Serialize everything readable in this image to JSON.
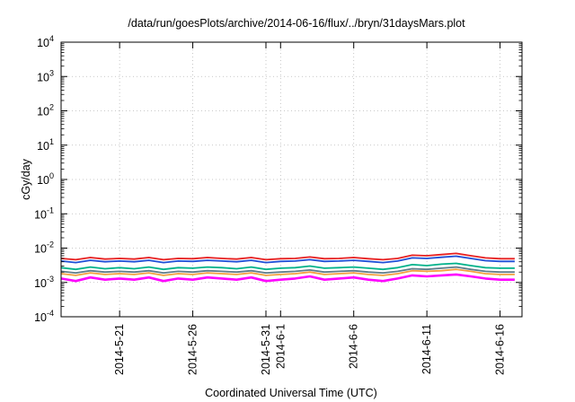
{
  "chart_data": {
    "type": "line",
    "title": "/data/run/goesPlots/archive/2014-06-16/flux/../bryn/31daysMars.plot",
    "xlabel": "Coordinated Universal Time (UTC)",
    "ylabel": "cGy/day",
    "yscale": "log",
    "ylim": [
      0.0001,
      10000
    ],
    "xlim": [
      "2014-05-17",
      "2014-06-17 12:00"
    ],
    "grid": true,
    "y_ticks": [
      {
        "value": 0.0001,
        "base": "10",
        "exp": "-4"
      },
      {
        "value": 0.001,
        "base": "10",
        "exp": "-3"
      },
      {
        "value": 0.01,
        "base": "10",
        "exp": "-2"
      },
      {
        "value": 0.1,
        "base": "10",
        "exp": "-1"
      },
      {
        "value": 1,
        "base": "10",
        "exp": "0"
      },
      {
        "value": 10,
        "base": "10",
        "exp": "1"
      },
      {
        "value": 100,
        "base": "10",
        "exp": "2"
      },
      {
        "value": 1000,
        "base": "10",
        "exp": "3"
      },
      {
        "value": 10000,
        "base": "10",
        "exp": "4"
      }
    ],
    "x_ticks": [
      {
        "date": "2014-05-21",
        "label": "2014-5-21"
      },
      {
        "date": "2014-05-26",
        "label": "2014-5-26"
      },
      {
        "date": "2014-05-31",
        "label": "2014-5-31"
      },
      {
        "date": "2014-06-01",
        "label": "2014-6-1"
      },
      {
        "date": "2014-06-06",
        "label": "2014-6-6"
      },
      {
        "date": "2014-06-11",
        "label": "2014-6-11"
      },
      {
        "date": "2014-06-16",
        "label": "2014-6-16"
      }
    ],
    "x": [
      "2014-05-17",
      "2014-05-18",
      "2014-05-19",
      "2014-05-20",
      "2014-05-21",
      "2014-05-22",
      "2014-05-23",
      "2014-05-24",
      "2014-05-25",
      "2014-05-26",
      "2014-05-27",
      "2014-05-28",
      "2014-05-29",
      "2014-05-30",
      "2014-05-31",
      "2014-06-01",
      "2014-06-02",
      "2014-06-03",
      "2014-06-04",
      "2014-06-05",
      "2014-06-06",
      "2014-06-07",
      "2014-06-08",
      "2014-06-09",
      "2014-06-10",
      "2014-06-11",
      "2014-06-12",
      "2014-06-13",
      "2014-06-14",
      "2014-06-15",
      "2014-06-16",
      "2014-06-17"
    ],
    "series": [
      {
        "color": "#ff00ff",
        "values": [
          0.0013,
          0.0011,
          0.0014,
          0.0012,
          0.0013,
          0.0012,
          0.0014,
          0.0011,
          0.0013,
          0.0012,
          0.0014,
          0.0013,
          0.0012,
          0.0014,
          0.0011,
          0.0012,
          0.0013,
          0.0015,
          0.0012,
          0.0013,
          0.0014,
          0.0012,
          0.0011,
          0.0013,
          0.0016,
          0.0015,
          0.0016,
          0.0017,
          0.0015,
          0.0013,
          0.0012,
          0.0012
        ]
      },
      {
        "color": "#f4a040",
        "values": [
          0.0018,
          0.0016,
          0.0019,
          0.0017,
          0.0018,
          0.0017,
          0.0019,
          0.0016,
          0.0018,
          0.0017,
          0.0019,
          0.0018,
          0.0017,
          0.0019,
          0.0016,
          0.0017,
          0.0018,
          0.002,
          0.0017,
          0.0018,
          0.0019,
          0.0017,
          0.0016,
          0.0018,
          0.0022,
          0.0021,
          0.0022,
          0.0024,
          0.0021,
          0.0018,
          0.0017,
          0.0017
        ]
      },
      {
        "color": "#607d8b",
        "values": [
          0.0021,
          0.0019,
          0.0022,
          0.002,
          0.0021,
          0.002,
          0.0022,
          0.0019,
          0.0021,
          0.002,
          0.0022,
          0.0021,
          0.002,
          0.0022,
          0.0019,
          0.002,
          0.0021,
          0.0023,
          0.002,
          0.0021,
          0.0022,
          0.002,
          0.0019,
          0.0021,
          0.0025,
          0.0024,
          0.0026,
          0.0028,
          0.0024,
          0.0021,
          0.002,
          0.002
        ]
      },
      {
        "color": "#00b28a",
        "values": [
          0.0027,
          0.0024,
          0.0028,
          0.0025,
          0.0027,
          0.0025,
          0.0028,
          0.0024,
          0.0027,
          0.0026,
          0.0028,
          0.0027,
          0.0025,
          0.0028,
          0.0024,
          0.0026,
          0.0027,
          0.003,
          0.0026,
          0.0027,
          0.0028,
          0.0026,
          0.0024,
          0.0027,
          0.0033,
          0.0031,
          0.0034,
          0.0036,
          0.0031,
          0.0027,
          0.0026,
          0.0026
        ]
      },
      {
        "color": "#1f4fd6",
        "values": [
          0.0042,
          0.0038,
          0.0044,
          0.004,
          0.0042,
          0.004,
          0.0044,
          0.0038,
          0.0042,
          0.0041,
          0.0044,
          0.0042,
          0.004,
          0.0044,
          0.0038,
          0.0041,
          0.0042,
          0.0046,
          0.0041,
          0.0042,
          0.0044,
          0.0041,
          0.0038,
          0.0042,
          0.0052,
          0.005,
          0.0054,
          0.0058,
          0.005,
          0.0043,
          0.0041,
          0.0041
        ]
      },
      {
        "color": "#e82020",
        "values": [
          0.005,
          0.0046,
          0.0053,
          0.0048,
          0.005,
          0.0048,
          0.0053,
          0.0046,
          0.005,
          0.0049,
          0.0053,
          0.005,
          0.0048,
          0.0053,
          0.0046,
          0.0049,
          0.005,
          0.0055,
          0.0049,
          0.005,
          0.0053,
          0.0049,
          0.0046,
          0.005,
          0.0062,
          0.006,
          0.0065,
          0.007,
          0.006,
          0.0052,
          0.0049,
          0.0049
        ]
      }
    ]
  }
}
